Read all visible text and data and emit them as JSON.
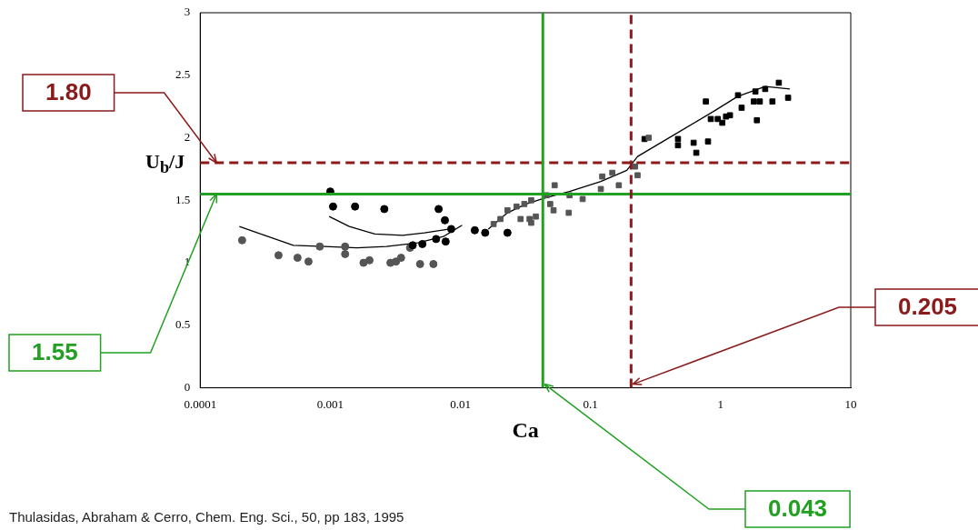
{
  "chart_data": {
    "type": "scatter",
    "xlabel": "Ca",
    "ylabel": "U$_{b}$/J",
    "log": "x",
    "grid": false,
    "legend": false,
    "xlim": [
      0.0001,
      10
    ],
    "xticks": [
      0.0001,
      0.001,
      0.01,
      0.1,
      1,
      10
    ],
    "ylim": [
      0,
      3
    ],
    "yticks": [
      0,
      0.5,
      1,
      1.5,
      2,
      2.5,
      3
    ],
    "series": [
      {
        "type": "scatter",
        "marker": "circle",
        "color": "#000000",
        "x": [
          0.001,
          0.00105,
          0.00155,
          0.0026,
          0.0068,
          0.0076,
          0.0085,
          0.0129,
          0.0043,
          0.0051,
          0.0065,
          0.0077,
          0.0155,
          0.023
        ],
        "values": [
          1.57,
          1.45,
          1.45,
          1.43,
          1.43,
          1.34,
          1.27,
          1.26,
          1.14,
          1.15,
          1.19,
          1.17,
          1.24,
          1.24
        ]
      },
      {
        "type": "scatter",
        "marker": "circle",
        "color": "#555555",
        "x": [
          0.00021,
          0.0004,
          0.00056,
          0.00068,
          0.00083,
          0.0013,
          0.0013,
          0.0018,
          0.002,
          0.0029,
          0.0032,
          0.0035,
          0.0041,
          0.0049,
          0.0062
        ],
        "values": [
          1.18,
          1.06,
          1.04,
          1.01,
          1.13,
          1.13,
          1.07,
          1.0,
          1.02,
          1.0,
          1.01,
          1.04,
          1.12,
          0.99,
          0.99
        ]
      },
      {
        "type": "scatter",
        "marker": "square",
        "color": "#555555",
        "x": [
          0.018,
          0.0203,
          0.023,
          0.027,
          0.031,
          0.035,
          0.029,
          0.034,
          0.035,
          0.038,
          0.046,
          0.049,
          0.052,
          0.068,
          0.053,
          0.069,
          0.087,
          0.123,
          0.147,
          0.165,
          0.12,
          0.23,
          0.22,
          0.28
        ],
        "values": [
          1.31,
          1.35,
          1.42,
          1.45,
          1.47,
          1.5,
          1.35,
          1.35,
          1.32,
          1.37,
          1.54,
          1.47,
          1.42,
          1.4,
          1.62,
          1.54,
          1.51,
          1.69,
          1.72,
          1.62,
          1.59,
          1.7,
          1.77,
          2.0
        ]
      },
      {
        "type": "scatter",
        "marker": "square",
        "color": "#000000",
        "x": [
          0.26,
          0.47,
          0.47,
          0.62,
          0.65,
          0.8,
          0.77,
          0.84,
          0.95,
          1.03,
          1.1,
          1.18,
          1.36,
          1.45,
          1.8,
          1.85,
          2.0,
          2.2,
          2.5,
          2.8,
          3.3,
          1.9
        ],
        "values": [
          1.99,
          1.99,
          1.94,
          1.96,
          1.88,
          1.97,
          2.29,
          2.15,
          2.15,
          2.12,
          2.17,
          2.18,
          2.34,
          2.24,
          2.29,
          2.37,
          2.29,
          2.39,
          2.29,
          2.44,
          2.32,
          2.14
        ]
      },
      {
        "type": "line",
        "marker": "none",
        "color": "#000000",
        "x": [
          0.0002,
          0.00052,
          0.0009,
          0.0016,
          0.0027,
          0.0047,
          0.0074,
          0.0103
        ],
        "values": [
          1.29,
          1.14,
          1.13,
          1.12,
          1.13,
          1.16,
          1.21,
          1.3
        ]
      },
      {
        "type": "line",
        "marker": "none",
        "color": "#000000",
        "x": [
          0.00098,
          0.0014,
          0.0022,
          0.0036,
          0.0053,
          0.0083
        ],
        "values": [
          1.37,
          1.29,
          1.23,
          1.22,
          1.24,
          1.27
        ]
      },
      {
        "type": "line",
        "marker": "none",
        "color": "#000000",
        "x": [
          0.0164,
          0.023,
          0.032,
          0.045,
          0.069,
          0.12,
          0.19,
          0.23,
          0.45,
          0.88,
          1.35,
          2.2,
          3.4
        ],
        "values": [
          1.27,
          1.4,
          1.47,
          1.52,
          1.57,
          1.65,
          1.74,
          1.85,
          2.03,
          2.21,
          2.33,
          2.41,
          2.39
        ]
      }
    ],
    "ref_lines": [
      {
        "axis": "y",
        "value": 1.8,
        "label": "1.80",
        "color": "#8b1a1a",
        "line_style": "dashed"
      },
      {
        "axis": "y",
        "value": 1.55,
        "label": "1.55",
        "color": "#22a022",
        "line_style": "solid"
      },
      {
        "axis": "x",
        "value": 0.205,
        "label": "0.205",
        "color": "#8b1a1a",
        "line_style": "dashed"
      },
      {
        "axis": "x",
        "value": 0.043,
        "label": "0.043",
        "color": "#22a022",
        "line_style": "solid"
      }
    ],
    "annotations": [
      "Thulasidas, Abraham & Cerro, Chem. Eng. Sci., 50, pp 183, 1995"
    ]
  }
}
